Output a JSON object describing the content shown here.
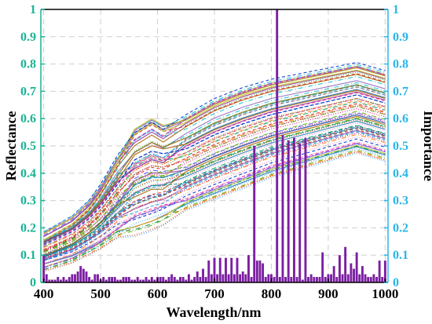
{
  "chart_data": {
    "type": "line",
    "xlabel": "Wavelength/nm",
    "ylabel_left": "Reflectance",
    "ylabel_right": "Importance",
    "xlim": [
      395,
      1005
    ],
    "xticks": [
      "400",
      "500",
      "600",
      "700",
      "800",
      "900",
      "1000"
    ],
    "ylim_left": [
      0,
      1
    ],
    "ylim_right": [
      0,
      1
    ],
    "yticks_left": [
      "0",
      "0.1",
      "0.2",
      "0.3",
      "0.4",
      "0.5",
      "0.6",
      "0.7",
      "0.8",
      "0.9",
      "1"
    ],
    "yticks_right": [
      "0",
      "0.1",
      "0.2",
      "0.3",
      "0.4",
      "0.5",
      "0.6",
      "0.7",
      "0.8",
      "0.9",
      "1"
    ],
    "grid": true,
    "reflectance_spectra": {
      "count": 80,
      "x": [
        400,
        450,
        480,
        500,
        530,
        560,
        590,
        610,
        650,
        700,
        750,
        800,
        850,
        900,
        950,
        1000
      ],
      "envelope_low": [
        0.05,
        0.08,
        0.11,
        0.13,
        0.17,
        0.2,
        0.22,
        0.24,
        0.27,
        0.31,
        0.35,
        0.39,
        0.42,
        0.45,
        0.48,
        0.45
      ],
      "envelope_high": [
        0.18,
        0.24,
        0.3,
        0.36,
        0.47,
        0.56,
        0.6,
        0.57,
        0.62,
        0.68,
        0.72,
        0.75,
        0.77,
        0.79,
        0.81,
        0.78
      ]
    },
    "importance_bars": {
      "color": "#7b1fa2",
      "x": [
        400,
        405,
        410,
        415,
        420,
        425,
        430,
        435,
        440,
        445,
        450,
        455,
        460,
        465,
        470,
        475,
        480,
        485,
        490,
        495,
        500,
        505,
        510,
        515,
        520,
        525,
        530,
        535,
        540,
        545,
        550,
        555,
        560,
        565,
        570,
        575,
        580,
        585,
        590,
        595,
        600,
        605,
        610,
        615,
        620,
        625,
        630,
        635,
        640,
        645,
        650,
        655,
        660,
        665,
        670,
        675,
        680,
        685,
        690,
        695,
        700,
        705,
        710,
        715,
        720,
        725,
        730,
        735,
        740,
        745,
        750,
        755,
        760,
        765,
        770,
        775,
        780,
        785,
        790,
        795,
        800,
        805,
        810,
        815,
        820,
        825,
        830,
        835,
        840,
        845,
        850,
        855,
        860,
        865,
        870,
        875,
        880,
        885,
        890,
        895,
        900,
        905,
        910,
        915,
        920,
        925,
        930,
        935,
        940,
        945,
        950,
        955,
        960,
        965,
        970,
        975,
        980,
        985,
        990,
        995,
        1000
      ],
      "values": [
        0.1,
        0.03,
        0.01,
        0.01,
        0.01,
        0.02,
        0.01,
        0.02,
        0.01,
        0.02,
        0.03,
        0.03,
        0.04,
        0.06,
        0.05,
        0.04,
        0.02,
        0.01,
        0.03,
        0.03,
        0.01,
        0.02,
        0.01,
        0.02,
        0.02,
        0.02,
        0.01,
        0.01,
        0.02,
        0.02,
        0.02,
        0.01,
        0.01,
        0.02,
        0.01,
        0.01,
        0.02,
        0.01,
        0.02,
        0.01,
        0.02,
        0.02,
        0.02,
        0.01,
        0.02,
        0.03,
        0.02,
        0.01,
        0.02,
        0.02,
        0.01,
        0.03,
        0.01,
        0.02,
        0.04,
        0.02,
        0.05,
        0.02,
        0.08,
        0.03,
        0.09,
        0.03,
        0.09,
        0.03,
        0.09,
        0.03,
        0.09,
        0.03,
        0.09,
        0.03,
        0.04,
        0.03,
        0.1,
        0.02,
        0.5,
        0.08,
        0.08,
        0.07,
        0.02,
        0.03,
        0.03,
        0.02,
        1.0,
        0.02,
        0.54,
        0.02,
        0.52,
        0.02,
        0.53,
        0.02,
        0.51,
        0.01,
        0.53,
        0.02,
        0.03,
        0.02,
        0.02,
        0.02,
        0.11,
        0.02,
        0.03,
        0.03,
        0.06,
        0.02,
        0.1,
        0.03,
        0.13,
        0.03,
        0.07,
        0.05,
        0.11,
        0.03,
        0.06,
        0.03,
        0.02,
        0.02,
        0.03,
        0.02,
        0.08,
        0.02,
        0.08
      ]
    }
  }
}
